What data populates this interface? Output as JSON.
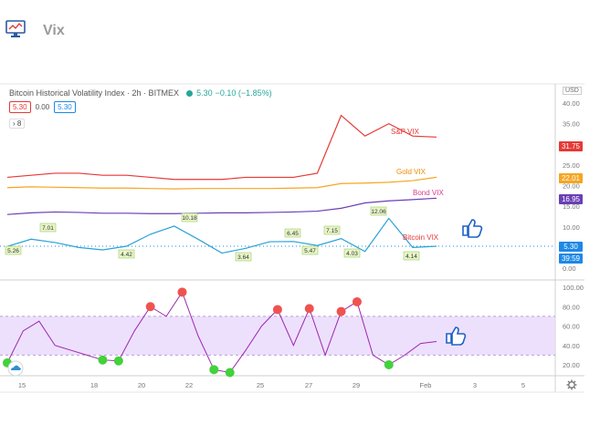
{
  "app": {
    "title": "Vix"
  },
  "chart_header": {
    "title": "Bitcoin Historical Volatility Index · 2h · BITMEX",
    "last": "5.30",
    "change": "−0.10 (−1.85%)",
    "ohlc": [
      "5.30",
      "0.00",
      "5.30"
    ],
    "collapse_label": "›  8"
  },
  "price_axis": {
    "currency": "USD",
    "ticks": [
      "40.00",
      "35.00",
      "30.00",
      "25.00",
      "20.00",
      "15.00",
      "10.00",
      "5.00",
      "0.00"
    ],
    "tags": [
      {
        "label": "31.75",
        "color": "#e53935"
      },
      {
        "label": "22.01",
        "color": "#f5a623"
      },
      {
        "label": "16.95",
        "color": "#6a3fb5"
      },
      {
        "label": "5.30",
        "color": "#1e88e5"
      },
      {
        "label": "39:59",
        "color": "#1e88e5"
      }
    ]
  },
  "oscillator_axis": {
    "ticks": [
      "100.00",
      "80.00",
      "60.00",
      "40.00",
      "20.00"
    ]
  },
  "time_axis": {
    "ticks": [
      "15",
      "18",
      "20",
      "22",
      "25",
      "27",
      "29",
      "Feb",
      "3",
      "5"
    ]
  },
  "series_labels": {
    "sp": "S&P VIX",
    "gold": "Gold VIX",
    "bond": "Bond VIX",
    "btc": "Bitcoin VIX"
  },
  "chart_data": {
    "type": "line",
    "x": [
      "Jan 14",
      "Jan 15",
      "Jan 16",
      "Jan 17",
      "Jan 18",
      "Jan 19",
      "Jan 20",
      "Jan 21",
      "Jan 22",
      "Jan 23",
      "Jan 24",
      "Jan 25",
      "Jan 26",
      "Jan 27",
      "Jan 28",
      "Jan 29",
      "Jan 30",
      "Jan 31",
      "Feb 1"
    ],
    "series": [
      {
        "name": "S&P VIX",
        "color": "#e53935",
        "values": [
          22,
          22.5,
          23,
          23,
          22.5,
          22.5,
          22,
          21.5,
          21.5,
          21.5,
          22,
          22,
          22,
          23,
          37,
          32,
          35,
          32,
          31.75
        ]
      },
      {
        "name": "Gold VIX",
        "color": "#f5a623",
        "values": [
          19.5,
          19.7,
          19.6,
          19.5,
          19.4,
          19.4,
          19.3,
          19.2,
          19.3,
          19.3,
          19.3,
          19.3,
          19.4,
          19.5,
          20.5,
          20.6,
          20.8,
          21.2,
          22.01
        ]
      },
      {
        "name": "Bond VIX",
        "color": "#6a3fb5",
        "values": [
          13,
          13.4,
          13.6,
          13.5,
          13.3,
          13.3,
          13.2,
          13.2,
          13.3,
          13.4,
          13.4,
          13.5,
          13.6,
          13.8,
          14.5,
          15.8,
          16.3,
          16.6,
          16.95
        ]
      },
      {
        "name": "Bitcoin VIX",
        "color": "#29a0d8",
        "values": [
          5.26,
          7.01,
          6.2,
          5,
          4.42,
          5.3,
          8.2,
          10.18,
          7,
          3.64,
          4.8,
          6.4,
          6.45,
          5.47,
          7.15,
          4.03,
          12.06,
          5,
          5.3
        ]
      }
    ],
    "annotations": [
      "5.26",
      "7.01",
      "4.42",
      "10.18",
      "3.64",
      "6.45",
      "5.47",
      "7.15",
      "4.03",
      "12.06",
      "4.14"
    ],
    "oscillator": {
      "values": [
        22,
        55,
        65,
        40,
        35,
        30,
        25,
        24,
        55,
        80,
        70,
        95,
        50,
        15,
        12,
        35,
        60,
        77,
        40,
        78,
        30,
        75,
        85,
        30,
        20,
        30,
        42,
        44
      ],
      "overbought": 70,
      "oversold": 30,
      "ylim": [
        0,
        100
      ]
    },
    "ylim": [
      0,
      40
    ]
  }
}
